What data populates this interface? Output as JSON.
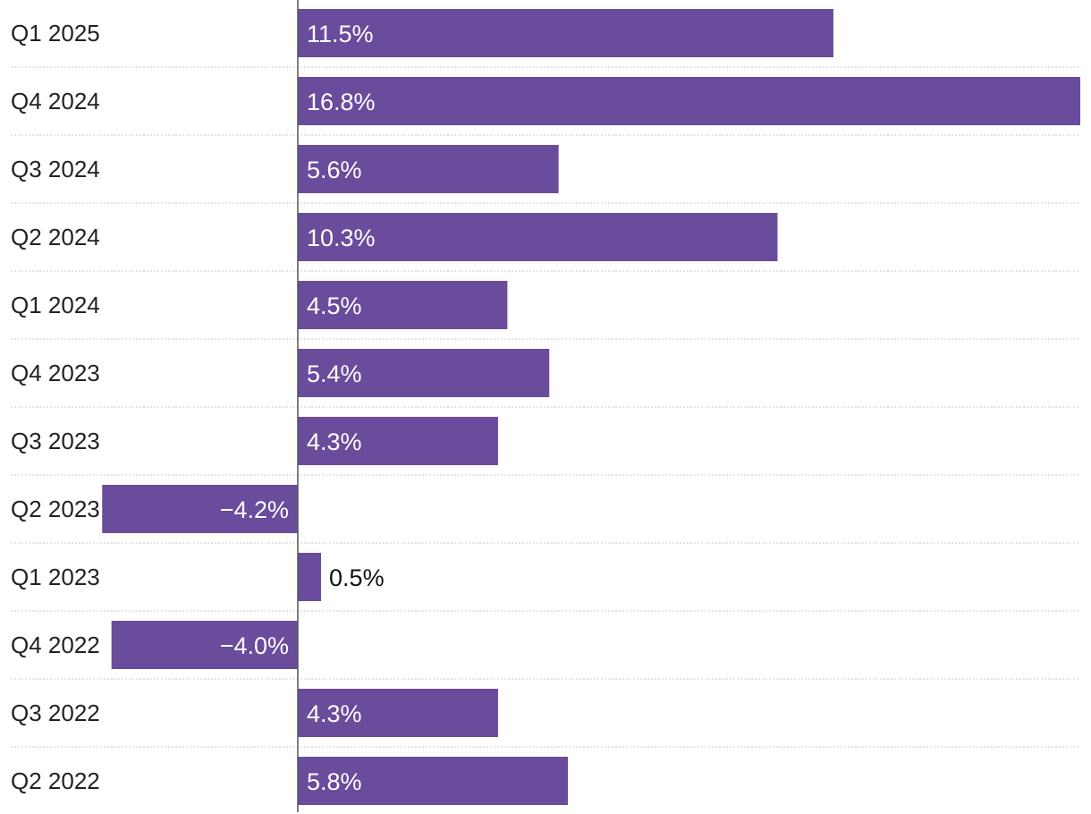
{
  "colors": {
    "bar": "#6a4c9c",
    "label_inside": "#ffffff",
    "label_outside": "#111111"
  },
  "chart_data": {
    "type": "bar",
    "orientation": "horizontal",
    "title": "",
    "xlabel": "",
    "ylabel": "",
    "xlim": [
      -5.7,
      16.8
    ],
    "grid": true,
    "categories": [
      "Q1 2025",
      "Q4 2024",
      "Q3 2024",
      "Q2 2024",
      "Q1 2024",
      "Q4 2023",
      "Q3 2023",
      "Q2 2023",
      "Q1 2023",
      "Q4 2022",
      "Q3 2022",
      "Q2 2022"
    ],
    "values": [
      11.5,
      16.8,
      5.6,
      10.3,
      4.5,
      5.4,
      4.3,
      -4.2,
      0.5,
      -4.0,
      4.3,
      5.8
    ],
    "labels": [
      "11.5%",
      "16.8%",
      "5.6%",
      "10.3%",
      "4.5%",
      "5.4%",
      "4.3%",
      "−4.2%",
      "0.5%",
      "−4.0%",
      "4.3%",
      "5.8%"
    ]
  }
}
